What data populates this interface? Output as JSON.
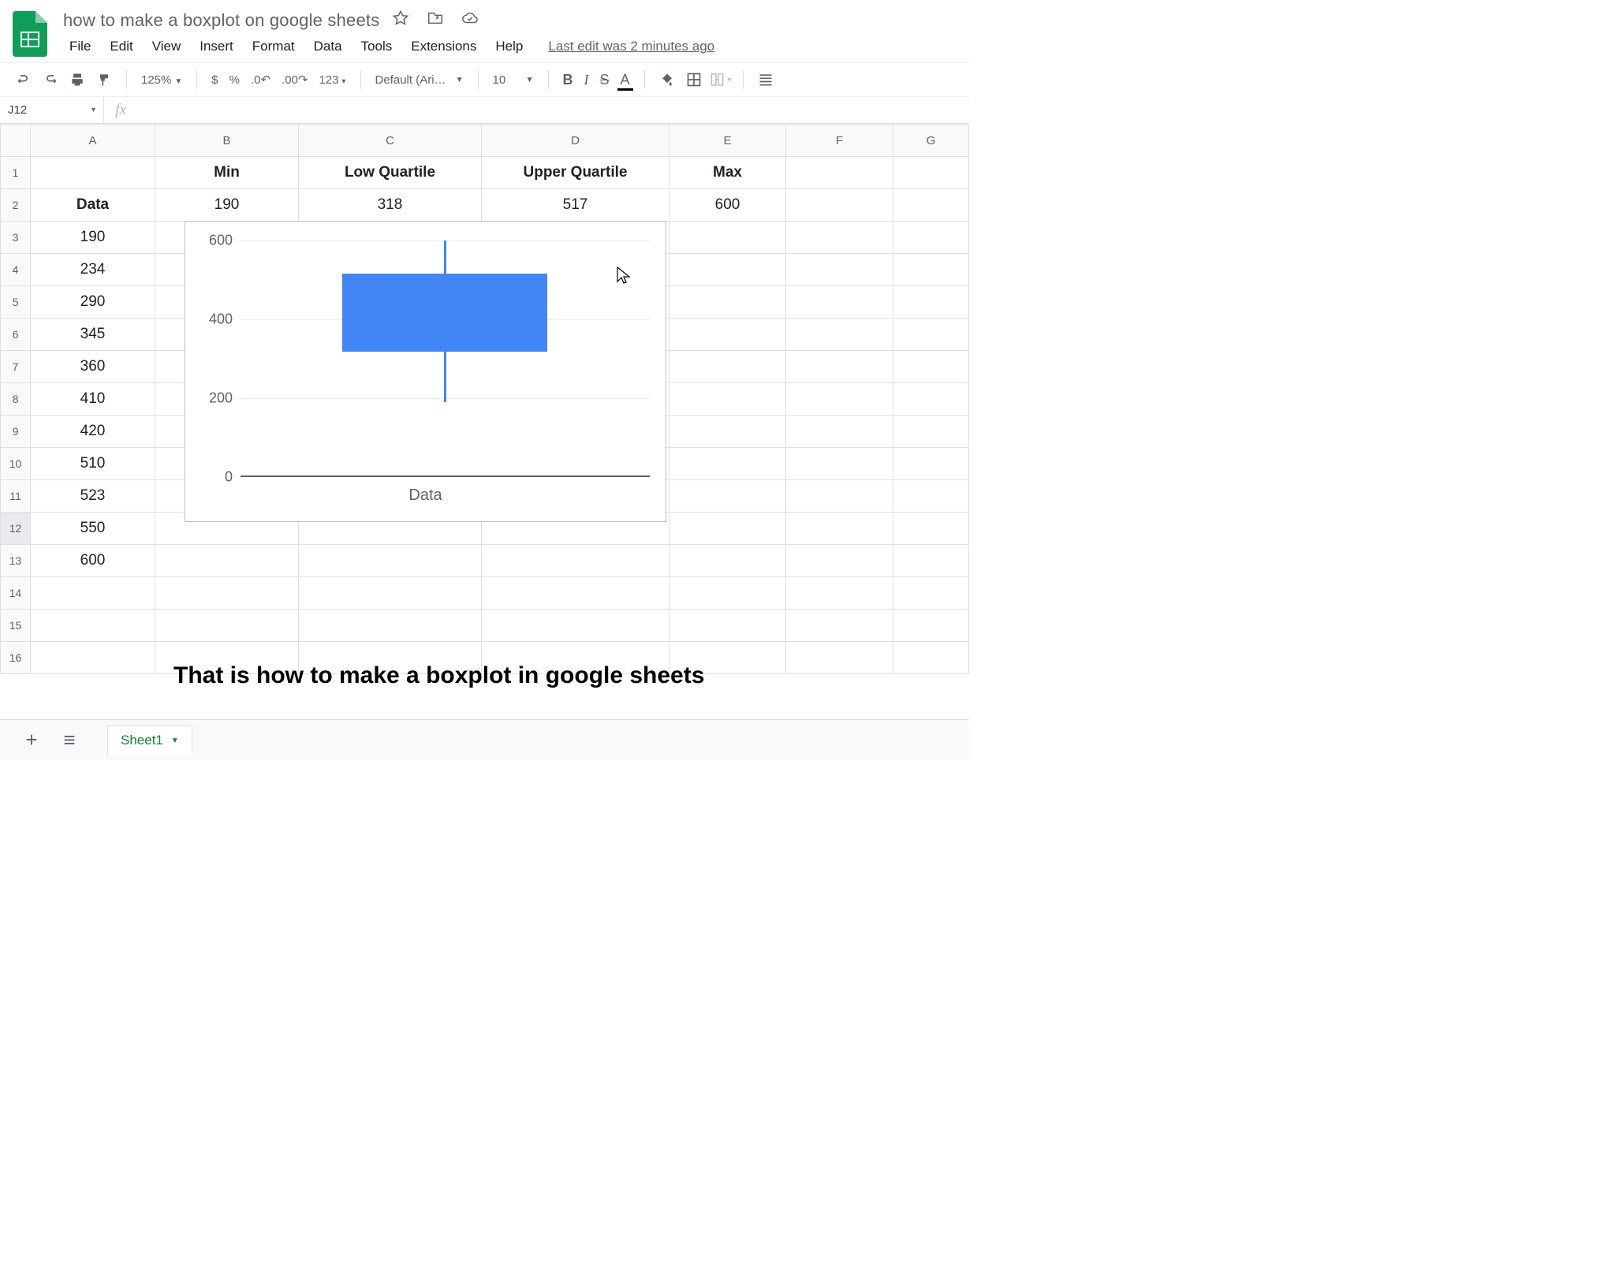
{
  "document": {
    "title": "how to make a boxplot on google sheets",
    "last_edit": "Last edit was 2 minutes ago"
  },
  "menus": [
    "File",
    "Edit",
    "View",
    "Insert",
    "Format",
    "Data",
    "Tools",
    "Extensions",
    "Help"
  ],
  "toolbar": {
    "zoom": "125%",
    "number_format": "123",
    "font": "Default (Ari…",
    "font_size": "10"
  },
  "name_box": "J12",
  "columns": [
    "A",
    "B",
    "C",
    "D",
    "E",
    "F",
    "G"
  ],
  "header_row": {
    "B": "Min",
    "C": "Low Quartile",
    "D": "Upper Quartile",
    "E": "Max"
  },
  "stats_row": {
    "A": "Data",
    "B": "190",
    "C": "318",
    "D": "517",
    "E": "600"
  },
  "data_values": [
    "190",
    "234",
    "290",
    "345",
    "360",
    "410",
    "420",
    "510",
    "523",
    "550",
    "600"
  ],
  "chart": {
    "type": "boxplot",
    "ylim": [
      0,
      600
    ],
    "yticks": [
      0,
      200,
      400,
      600
    ],
    "gridline_color": "#e8eaed",
    "axis_color": "#616161",
    "box_color": "#4285f4",
    "whisker_color": "#4285f4",
    "min": 190,
    "q1": 318,
    "q3": 517,
    "max": 600,
    "x_label": "Data",
    "label_color": "#5f6368",
    "label_fontsize": 18,
    "background": "#ffffff",
    "border": "#bdbdbd"
  },
  "annotation": {
    "arrow_color": "#ff1a1a",
    "caption": "That is how to make a boxplot in google sheets",
    "caption_color": "#000000",
    "caption_fontsize": 30,
    "caption_weight": "bold"
  },
  "tabs": {
    "active": "Sheet1"
  },
  "row_count": 16,
  "selected_row": 12
}
